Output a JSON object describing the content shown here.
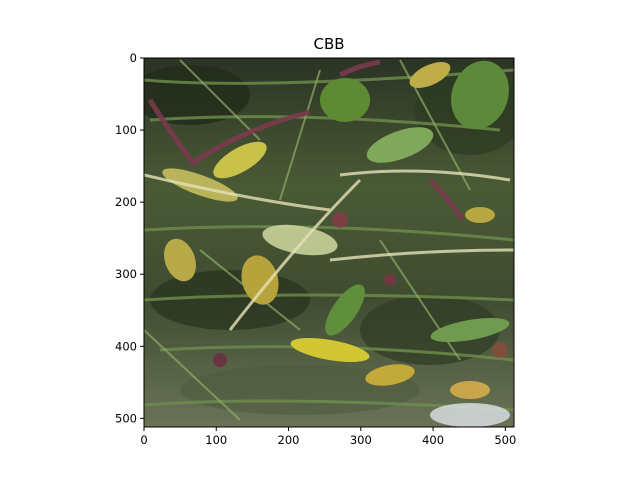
{
  "figure": {
    "title": "CBB",
    "image_description": "Close-up photograph of cassava foliage with yellowing, browning and wilted leaves, green and purple-red stems, consistent with cassava bacterial blight symptoms.",
    "x_axis": {
      "ticks": [
        0,
        100,
        200,
        300,
        400,
        500
      ],
      "range": [
        0,
        512
      ]
    },
    "y_axis": {
      "ticks": [
        0,
        100,
        200,
        300,
        400,
        500
      ],
      "range": [
        0,
        512
      ],
      "inverted": true
    },
    "colors": {
      "background": "#ffffff",
      "frame": "#000000",
      "foliage_dark": "#2f3b26",
      "foliage_mid": "#5f7a3e",
      "leaf_yellow": "#c9c24a",
      "stem_purple": "#7a3a4e"
    }
  }
}
